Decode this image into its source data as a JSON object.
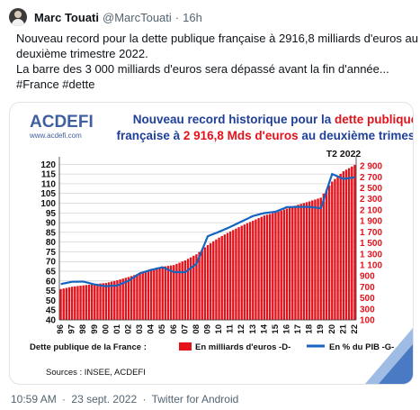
{
  "tweet": {
    "author_name": "Marc Touati",
    "author_handle": "@MarcTouati",
    "separator": "·",
    "age": "16h",
    "lines": [
      "Nouveau record pour la dette publique française à 2916,8 milliards d'euros au",
      "deuxième trimestre 2022.",
      "La barre des 3 000 milliards d'euros sera dépassé avant la fin d'année...",
      "#France #dette"
    ],
    "footer_time": "10:59 AM",
    "footer_separator": "·",
    "footer_date": "23 sept. 2022",
    "footer_client": "Twitter for Android"
  },
  "media": {
    "logo_text": "ACDEFI",
    "logo_url": "www.acdefi.com",
    "title_parts": [
      {
        "text": "Nouveau record historique pour la ",
        "color": "#1f3f9a"
      },
      {
        "text": "dette publique",
        "color": "#e3121b"
      },
      {
        "text": "française à ",
        "color": "#1f3f9a"
      },
      {
        "text": "2 916,8 Mds d'euros",
        "color": "#e3121b"
      },
      {
        "text": " au deuxième trimestre.",
        "color": "#1f3f9a"
      }
    ],
    "sources": "Sources : INSEE, ACDEFI"
  },
  "chart_data": {
    "type": "bar",
    "annotation": "T2 2022",
    "x_ticks": [
      "96",
      "97",
      "98",
      "99",
      "00",
      "01",
      "02",
      "03",
      "04",
      "05",
      "06",
      "07",
      "08",
      "09",
      "10",
      "11",
      "12",
      "13",
      "14",
      "15",
      "16",
      "17",
      "18",
      "19",
      "20",
      "21",
      "22"
    ],
    "left_axis": {
      "ticks": [
        40,
        45,
        50,
        55,
        60,
        65,
        70,
        75,
        80,
        85,
        90,
        95,
        100,
        105,
        110,
        115,
        120
      ],
      "range": [
        40,
        122
      ]
    },
    "right_axis": {
      "ticks": [
        100,
        300,
        500,
        700,
        900,
        1100,
        1300,
        1500,
        1700,
        1900,
        2100,
        2300,
        2500,
        2700,
        2900
      ],
      "range": [
        100,
        3000
      ]
    },
    "legend_prefix": "Dette publique de la France :",
    "series": [
      {
        "name": "En milliards d'euros -D-",
        "axis": "right",
        "color": "#e3121b",
        "kind": "bar",
        "yearly_q4": [
          660,
          703,
          728,
          752,
          771,
          821,
          880,
          948,
          1010,
          1066,
          1097,
          1182,
          1293,
          1462,
          1596,
          1708,
          1812,
          1903,
          1998,
          2054,
          2123,
          2194,
          2255,
          2322,
          2615,
          2802,
          2917
        ]
      },
      {
        "name": "En % du PIB -G-",
        "axis": "left",
        "color": "#1565c0",
        "kind": "line",
        "yearly_q4": [
          58.4,
          59.6,
          59.7,
          58.2,
          57.3,
          57.7,
          60.1,
          64.0,
          65.7,
          67.1,
          64.6,
          64.5,
          68.8,
          83.0,
          85.3,
          87.8,
          90.6,
          93.4,
          94.9,
          95.6,
          98.0,
          98.1,
          98.1,
          97.4,
          115.0,
          112.5,
          113.3
        ]
      }
    ]
  }
}
